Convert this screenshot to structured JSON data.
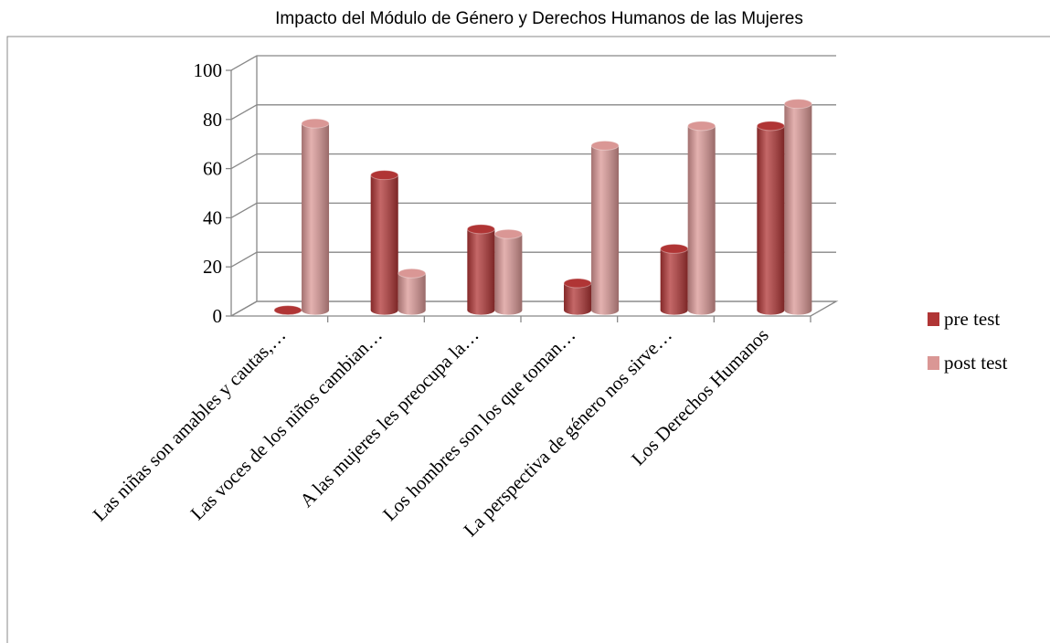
{
  "chart_data": {
    "type": "bar3d",
    "title": "Impacto del Módulo de Género y Derechos Humanos de las Mujeres",
    "categories": [
      "Las niñas son amables y cautas,…",
      "Las voces de los niños cambian…",
      "A las mujeres les preocupa la…",
      "Los hombres son los que toman…",
      "La perspectiva de género nos sirve…",
      "Los Derechos Humanos"
    ],
    "series": [
      {
        "name": "pre test",
        "color": "#b03535",
        "values": [
          0,
          55,
          33,
          11,
          25,
          75
        ]
      },
      {
        "name": "post test",
        "color": "#da9795",
        "values": [
          76,
          15,
          31,
          67,
          75,
          84
        ]
      }
    ],
    "ylim": [
      0,
      100
    ],
    "yticks": [
      0,
      20,
      40,
      60,
      80,
      100
    ],
    "grid": true,
    "legend": "right"
  }
}
